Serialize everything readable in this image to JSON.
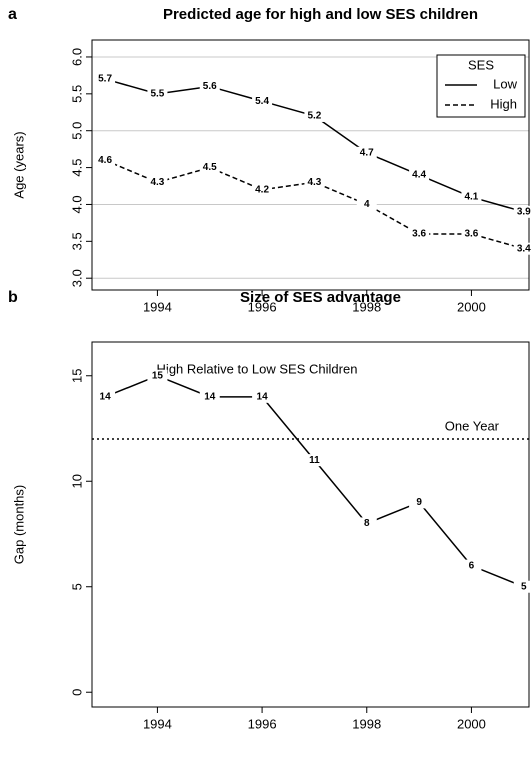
{
  "chart_data": [
    {
      "type": "line",
      "panel": "a",
      "title": "Predicted age for high and low SES children",
      "ylabel": "Age (years)",
      "x": [
        1993,
        1994,
        1995,
        1996,
        1997,
        1998,
        1999,
        2000,
        2001
      ],
      "series": [
        {
          "name": "Low",
          "color": "#000000",
          "style": "solid",
          "values": [
            5.7,
            5.5,
            5.6,
            5.4,
            5.2,
            4.7,
            4.4,
            4.1,
            3.9
          ]
        },
        {
          "name": "High",
          "color": "#000000",
          "style": "dashed",
          "values": [
            4.6,
            4.3,
            4.5,
            4.2,
            4.3,
            4,
            3.6,
            3.6,
            3.4
          ]
        }
      ],
      "xlim": [
        1992.75,
        2001.1
      ],
      "ylim": [
        2.84,
        6.23
      ],
      "xticks": [
        1994,
        1996,
        1998,
        2000
      ],
      "yticks": [
        {
          "value": 3,
          "label": "3.0"
        },
        3.5,
        {
          "value": 4,
          "label": "4.0"
        },
        4.5,
        {
          "value": 5,
          "label": "5.0"
        },
        5.5,
        {
          "value": 6,
          "label": "6.0"
        }
      ],
      "grid_lines": [
        3,
        4,
        5,
        6
      ],
      "grid_color": "#c8c8c8",
      "legend": {
        "title": "SES",
        "position": "top right"
      }
    },
    {
      "type": "line",
      "panel": "b",
      "title": "Size of SES advantage",
      "ylabel": "Gap (months)",
      "annotation": "High Relative to Low SES Children",
      "x": [
        1993,
        1994,
        1995,
        1996,
        1997,
        1998,
        1999,
        2000,
        2001
      ],
      "values": [
        14,
        15,
        14,
        14,
        11,
        8,
        9,
        6,
        5
      ],
      "color": "#000000",
      "reference_line": {
        "value": 12,
        "label": "One Year"
      },
      "xlim": [
        1992.75,
        2001.1
      ],
      "ylim": [
        -0.7,
        16.6
      ],
      "xticks": [
        1994,
        1996,
        1998,
        2000
      ],
      "yticks": [
        0,
        5,
        10,
        15
      ]
    }
  ]
}
